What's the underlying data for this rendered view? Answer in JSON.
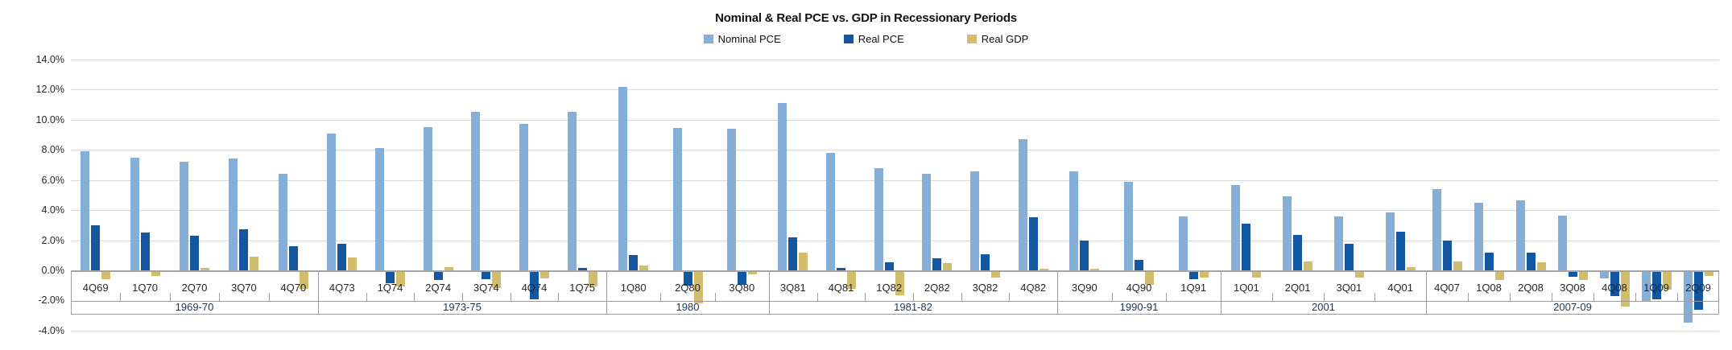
{
  "chart_data": {
    "type": "bar",
    "title": "Nominal & Real PCE vs. GDP in Recessionary Periods",
    "xlabel": "",
    "ylabel": "",
    "ylim": [
      -4,
      14
    ],
    "grid": "horizontal",
    "legend_position": "top-center",
    "y_ticks": [
      {
        "value": 14,
        "label": "14.0%"
      },
      {
        "value": 12,
        "label": "12.0%"
      },
      {
        "value": 10,
        "label": "10.0%"
      },
      {
        "value": 8,
        "label": "8.0%"
      },
      {
        "value": 6,
        "label": "6.0%"
      },
      {
        "value": 4,
        "label": "4.0%"
      },
      {
        "value": 2,
        "label": "2.0%"
      },
      {
        "value": 0,
        "label": "0.0%"
      },
      {
        "value": -2,
        "label": "-2.0%"
      },
      {
        "value": -4,
        "label": "-4.0%"
      }
    ],
    "legend": [
      {
        "label": "Nominal PCE",
        "color": "#86afd7"
      },
      {
        "label": "Real PCE",
        "color": "#1257a0"
      },
      {
        "label": "Real GDP",
        "color": "#d2bc6e"
      }
    ],
    "series_order": [
      "Nominal PCE",
      "Real PCE",
      "Real GDP"
    ],
    "groups": [
      {
        "period": "1969-70",
        "quarters": [
          {
            "label": "4Q69",
            "values": [
              7.9,
              3.0,
              -0.5
            ]
          },
          {
            "label": "1Q70",
            "values": [
              7.5,
              2.5,
              -0.25
            ]
          },
          {
            "label": "2Q70",
            "values": [
              7.2,
              2.3,
              0.15
            ]
          },
          {
            "label": "3Q70",
            "values": [
              7.4,
              2.7,
              0.9
            ]
          },
          {
            "label": "4Q70",
            "values": [
              6.4,
              1.6,
              -1.1
            ]
          }
        ]
      },
      {
        "period": "1973-75",
        "quarters": [
          {
            "label": "4Q73",
            "values": [
              9.1,
              1.75,
              0.85
            ]
          },
          {
            "label": "1Q74",
            "values": [
              8.1,
              -0.75,
              -0.95
            ]
          },
          {
            "label": "2Q74",
            "values": [
              9.5,
              -0.55,
              0.2
            ]
          },
          {
            "label": "3Q74",
            "values": [
              10.5,
              -0.5,
              -1.05
            ]
          },
          {
            "label": "4Q74",
            "values": [
              9.7,
              -1.8,
              -0.45
            ]
          },
          {
            "label": "1Q75",
            "values": [
              10.5,
              0.15,
              -0.95
            ]
          }
        ]
      },
      {
        "period": "1980",
        "quarters": [
          {
            "label": "1Q80",
            "values": [
              12.2,
              1.0,
              0.3
            ]
          },
          {
            "label": "2Q80",
            "values": [
              9.45,
              -0.9,
              -2.1
            ]
          },
          {
            "label": "3Q80",
            "values": [
              9.4,
              -0.85,
              -0.15
            ]
          }
        ]
      },
      {
        "period": "1981-82",
        "quarters": [
          {
            "label": "3Q81",
            "values": [
              11.1,
              2.2,
              1.2
            ]
          },
          {
            "label": "4Q81",
            "values": [
              7.8,
              0.15,
              -1.1
            ]
          },
          {
            "label": "1Q82",
            "values": [
              6.8,
              0.55,
              -1.55
            ]
          },
          {
            "label": "2Q82",
            "values": [
              6.4,
              0.8,
              0.5
            ]
          },
          {
            "label": "3Q82",
            "values": [
              6.55,
              1.05,
              -0.4
            ]
          },
          {
            "label": "4Q82",
            "values": [
              8.7,
              3.55,
              0.1
            ]
          }
        ]
      },
      {
        "period": "1990-91",
        "quarters": [
          {
            "label": "3Q90",
            "values": [
              6.55,
              2.0,
              0.1
            ]
          },
          {
            "label": "4Q90",
            "values": [
              5.85,
              0.7,
              -0.85
            ]
          },
          {
            "label": "1Q91",
            "values": [
              3.6,
              -0.5,
              -0.4
            ]
          }
        ]
      },
      {
        "period": "2001",
        "quarters": [
          {
            "label": "1Q01",
            "values": [
              5.65,
              3.1,
              -0.35
            ]
          },
          {
            "label": "2Q01",
            "values": [
              4.9,
              2.35,
              0.6
            ]
          },
          {
            "label": "3Q01",
            "values": [
              3.6,
              1.75,
              -0.4
            ]
          },
          {
            "label": "4Q01",
            "values": [
              3.85,
              2.55,
              0.2
            ]
          }
        ]
      },
      {
        "period": "2007-09",
        "quarters": [
          {
            "label": "4Q07",
            "values": [
              5.4,
              1.95,
              0.6
            ]
          },
          {
            "label": "1Q08",
            "values": [
              4.5,
              1.15,
              -0.55
            ]
          },
          {
            "label": "2Q08",
            "values": [
              4.65,
              1.15,
              0.55
            ]
          },
          {
            "label": "3Q08",
            "values": [
              3.65,
              -0.3,
              -0.55
            ]
          },
          {
            "label": "4Q08",
            "values": [
              -0.45,
              -1.6,
              -2.3
            ]
          },
          {
            "label": "1Q09",
            "values": [
              -1.95,
              -1.8,
              -1.2
            ]
          },
          {
            "label": "2Q09",
            "values": [
              -3.35,
              -2.5,
              -0.25
            ]
          }
        ]
      }
    ]
  }
}
